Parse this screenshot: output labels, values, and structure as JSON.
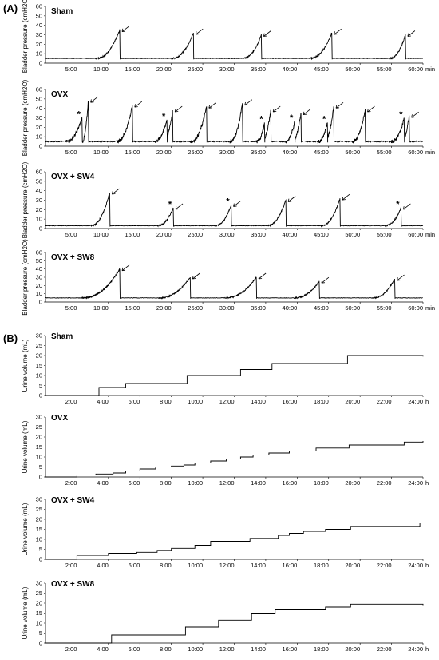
{
  "figure": {
    "section_a_label": "(A)",
    "section_b_label": "(B)"
  },
  "chart_data": [
    {
      "type": "line",
      "section": "A",
      "title": "Sham",
      "ylabel": "Bladder pressure (cmH2O)",
      "x_unit": "min",
      "xlim": [
        0,
        60
      ],
      "ylim": [
        0,
        60
      ],
      "xticks": [
        "5:00",
        "10:00",
        "15:00",
        "20:00",
        "25:00",
        "30:00",
        "35:00",
        "40:00",
        "45:00",
        "50:00",
        "55:00",
        "60:00"
      ],
      "yticks": [
        0,
        10,
        20,
        30,
        40,
        50,
        60
      ],
      "baseline": 5,
      "voids": [
        {
          "t": 11.8,
          "peak": 35,
          "rise": 3.8,
          "arrow": true,
          "star": false
        },
        {
          "t": 23.5,
          "peak": 32,
          "rise": 3.5,
          "arrow": true,
          "star": false
        },
        {
          "t": 34.3,
          "peak": 30,
          "rise": 3.0,
          "arrow": true,
          "star": false
        },
        {
          "t": 45.5,
          "peak": 32,
          "rise": 3.5,
          "arrow": true,
          "star": false
        },
        {
          "t": 57.2,
          "peak": 30,
          "rise": 2.5,
          "arrow": true,
          "star": false
        }
      ]
    },
    {
      "type": "line",
      "section": "A",
      "title": "OVX",
      "ylabel": "Bladder pressure (cmH2O)",
      "x_unit": "min",
      "xlim": [
        0,
        60
      ],
      "ylim": [
        0,
        60
      ],
      "xticks": [
        "5:00",
        "10:00",
        "15:00",
        "20:00",
        "25:00",
        "30:00",
        "35:00",
        "40:00",
        "45:00",
        "50:00",
        "55:00",
        "60:00"
      ],
      "yticks": [
        0,
        10,
        20,
        30,
        40,
        50,
        60
      ],
      "baseline": 5,
      "voids": [
        {
          "t": 5.8,
          "peak": 30,
          "rise": 2.5,
          "arrow": false,
          "star": true
        },
        {
          "t": 6.8,
          "peak": 48,
          "rise": 1.0,
          "arrow": true,
          "star": false
        },
        {
          "t": 13.8,
          "peak": 43,
          "rise": 2.5,
          "arrow": true,
          "star": false
        },
        {
          "t": 19.3,
          "peak": 28,
          "rise": 2.0,
          "arrow": false,
          "star": true
        },
        {
          "t": 20.2,
          "peak": 38,
          "rise": 1.5,
          "arrow": true,
          "star": false
        },
        {
          "t": 25.6,
          "peak": 42,
          "rise": 2.5,
          "arrow": true,
          "star": false
        },
        {
          "t": 31.3,
          "peak": 45,
          "rise": 2.0,
          "arrow": true,
          "star": false
        },
        {
          "t": 34.8,
          "peak": 25,
          "rise": 1.2,
          "arrow": false,
          "star": true
        },
        {
          "t": 35.8,
          "peak": 38,
          "rise": 1.5,
          "arrow": true,
          "star": false
        },
        {
          "t": 39.6,
          "peak": 26,
          "rise": 1.5,
          "arrow": false,
          "star": true
        },
        {
          "t": 40.6,
          "peak": 35,
          "rise": 1.5,
          "arrow": true,
          "star": false
        },
        {
          "t": 44.8,
          "peak": 25,
          "rise": 1.5,
          "arrow": false,
          "star": true
        },
        {
          "t": 45.8,
          "peak": 42,
          "rise": 1.5,
          "arrow": true,
          "star": false
        },
        {
          "t": 50.8,
          "peak": 38,
          "rise": 2.0,
          "arrow": true,
          "star": false
        },
        {
          "t": 57.0,
          "peak": 30,
          "rise": 2.0,
          "arrow": false,
          "star": true
        },
        {
          "t": 57.8,
          "peak": 32,
          "rise": 1.2,
          "arrow": true,
          "star": false
        }
      ]
    },
    {
      "type": "line",
      "section": "A",
      "title": "OVX + SW4",
      "ylabel": "Bladder pressure (cmH2O)",
      "x_unit": "min",
      "xlim": [
        0,
        60
      ],
      "ylim": [
        0,
        60
      ],
      "xticks": [
        "5:00",
        "10:00",
        "15:00",
        "20:00",
        "25:00",
        "30:00",
        "35:00",
        "40:00",
        "45:00",
        "50:00",
        "55:00",
        "60:00"
      ],
      "yticks": [
        0,
        10,
        20,
        30,
        40,
        50,
        60
      ],
      "baseline": 3,
      "voids": [
        {
          "t": 10.2,
          "peak": 38,
          "rise": 3.0,
          "arrow": true,
          "star": false
        },
        {
          "t": 20.3,
          "peak": 22,
          "rise": 2.5,
          "arrow": true,
          "star": true
        },
        {
          "t": 29.5,
          "peak": 25,
          "rise": 2.5,
          "arrow": true,
          "star": true
        },
        {
          "t": 38.2,
          "peak": 30,
          "rise": 3.0,
          "arrow": true,
          "star": false
        },
        {
          "t": 46.8,
          "peak": 32,
          "rise": 3.0,
          "arrow": true,
          "star": false
        },
        {
          "t": 56.5,
          "peak": 22,
          "rise": 2.5,
          "arrow": true,
          "star": true
        }
      ]
    },
    {
      "type": "line",
      "section": "A",
      "title": "OVX + SW8",
      "ylabel": "Bladder pressure (cmH2O)",
      "x_unit": "min",
      "xlim": [
        0,
        60
      ],
      "ylim": [
        0,
        60
      ],
      "xticks": [
        "5:00",
        "10:00",
        "15:00",
        "20:00",
        "25:00",
        "30:00",
        "35:00",
        "40:00",
        "45:00",
        "50:00",
        "55:00",
        "60:00"
      ],
      "yticks": [
        0,
        10,
        20,
        30,
        40,
        50,
        60
      ],
      "baseline": 5,
      "voids": [
        {
          "t": 11.8,
          "peak": 40,
          "rise": 6.0,
          "arrow": true,
          "star": false
        },
        {
          "t": 23.0,
          "peak": 30,
          "rise": 5.0,
          "arrow": true,
          "star": false
        },
        {
          "t": 33.5,
          "peak": 30,
          "rise": 5.0,
          "arrow": true,
          "star": false
        },
        {
          "t": 43.5,
          "peak": 25,
          "rise": 4.0,
          "arrow": true,
          "star": false
        },
        {
          "t": 55.5,
          "peak": 28,
          "rise": 3.5,
          "arrow": true,
          "star": false
        }
      ]
    },
    {
      "type": "line",
      "section": "B",
      "title": "Sham",
      "ylabel": "Urine volume (mL)",
      "x_unit": "h",
      "xlim": [
        0,
        24
      ],
      "ylim": [
        0,
        30
      ],
      "xticks": [
        "2:00",
        "4:00",
        "6:00",
        "8:00",
        "10:00",
        "12:00",
        "14:00",
        "16:00",
        "18:00",
        "20:00",
        "22:00",
        "24:00"
      ],
      "yticks": [
        0,
        5,
        10,
        15,
        20,
        25,
        30
      ],
      "steps": [
        [
          0,
          0
        ],
        [
          3.4,
          4
        ],
        [
          5.1,
          6
        ],
        [
          9.0,
          10
        ],
        [
          12.4,
          13
        ],
        [
          14.4,
          16
        ],
        [
          19.2,
          20
        ],
        [
          24,
          19.5
        ]
      ]
    },
    {
      "type": "line",
      "section": "B",
      "title": "OVX",
      "ylabel": "Urine volume (mL)",
      "x_unit": "h",
      "xlim": [
        0,
        24
      ],
      "ylim": [
        0,
        30
      ],
      "xticks": [
        "2:00",
        "4:00",
        "6:00",
        "8:00",
        "10:00",
        "12:00",
        "14:00",
        "16:00",
        "18:00",
        "20:00",
        "22:00",
        "24:00"
      ],
      "yticks": [
        0,
        5,
        10,
        15,
        20,
        25,
        30
      ],
      "steps": [
        [
          0,
          0
        ],
        [
          2.0,
          1
        ],
        [
          3.2,
          1.5
        ],
        [
          4.3,
          2
        ],
        [
          5.1,
          3
        ],
        [
          6.0,
          4
        ],
        [
          7.0,
          5
        ],
        [
          8.0,
          5.5
        ],
        [
          8.8,
          6
        ],
        [
          9.5,
          7
        ],
        [
          10.5,
          8
        ],
        [
          11.5,
          9
        ],
        [
          12.4,
          10
        ],
        [
          13.2,
          11
        ],
        [
          14.2,
          12
        ],
        [
          15.5,
          13
        ],
        [
          17.2,
          14.5
        ],
        [
          19.3,
          16
        ],
        [
          22.8,
          17.5
        ],
        [
          24,
          18
        ]
      ]
    },
    {
      "type": "line",
      "section": "B",
      "title": "OVX + SW4",
      "ylabel": "Urine volume (mL)",
      "x_unit": "h",
      "xlim": [
        0,
        24
      ],
      "ylim": [
        0,
        30
      ],
      "xticks": [
        "2:00",
        "4:00",
        "6:00",
        "8:00",
        "10:00",
        "12:00",
        "14:00",
        "16:00",
        "18:00",
        "20:00",
        "22:00",
        "24:00"
      ],
      "yticks": [
        0,
        5,
        10,
        15,
        20,
        25,
        30
      ],
      "steps": [
        [
          0,
          0
        ],
        [
          2.0,
          2
        ],
        [
          4.0,
          3
        ],
        [
          5.8,
          3.5
        ],
        [
          7.1,
          4.5
        ],
        [
          8.0,
          5.5
        ],
        [
          9.5,
          7
        ],
        [
          10.5,
          9
        ],
        [
          13.0,
          10.5
        ],
        [
          14.8,
          12
        ],
        [
          15.5,
          13
        ],
        [
          16.4,
          14
        ],
        [
          17.8,
          15
        ],
        [
          19.4,
          16.5
        ],
        [
          23.8,
          18
        ]
      ]
    },
    {
      "type": "line",
      "section": "B",
      "title": "OVX + SW8",
      "ylabel": "Urine volume (mL)",
      "x_unit": "h",
      "xlim": [
        0,
        24
      ],
      "ylim": [
        0,
        30
      ],
      "xticks": [
        "2:00",
        "4:00",
        "6:00",
        "8:00",
        "10:00",
        "12:00",
        "14:00",
        "16:00",
        "18:00",
        "20:00",
        "22:00",
        "24:00"
      ],
      "yticks": [
        0,
        5,
        10,
        15,
        20,
        25,
        30
      ],
      "steps": [
        [
          0,
          0
        ],
        [
          4.2,
          4
        ],
        [
          8.9,
          8
        ],
        [
          11.0,
          11.5
        ],
        [
          13.1,
          15
        ],
        [
          14.6,
          17
        ],
        [
          17.8,
          18
        ],
        [
          19.4,
          19.5
        ],
        [
          24,
          19
        ]
      ]
    }
  ]
}
